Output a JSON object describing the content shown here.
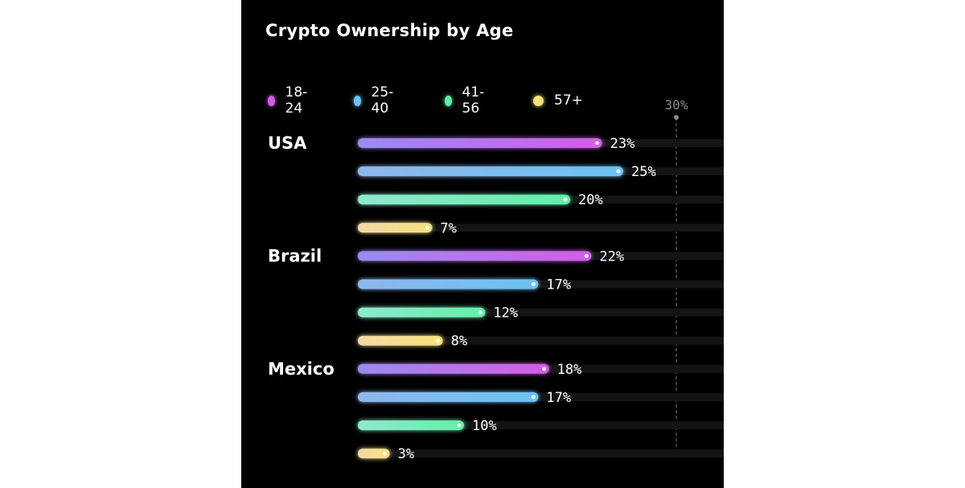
{
  "chart_data": {
    "type": "bar",
    "orientation": "horizontal",
    "title": "Crypto Ownership by Age",
    "categories": [
      "USA",
      "Brazil",
      "Mexico"
    ],
    "series": [
      {
        "name": "18-24",
        "values": [
          23,
          22,
          18
        ],
        "color": "#d45de6"
      },
      {
        "name": "25-40",
        "values": [
          25,
          17,
          17
        ],
        "color": "#6cc2f3"
      },
      {
        "name": "41-56",
        "values": [
          20,
          12,
          10
        ],
        "color": "#63eea8"
      },
      {
        "name": "57+",
        "values": [
          7,
          8,
          3
        ],
        "color": "#f6e27c"
      }
    ],
    "value_suffix": "%",
    "xlim": [
      0,
      30
    ],
    "reference_line": {
      "value": 30,
      "label": "30%"
    },
    "legend_placement": "top-left",
    "grid": false
  },
  "style": {
    "background": "#000000",
    "track_color": "#141414",
    "gradient_start": {
      "18-24": "#9a8cf0",
      "25-40": "#8fb7ec",
      "41-56": "#8fe8cf",
      "57+": "#f3d9a6"
    }
  }
}
